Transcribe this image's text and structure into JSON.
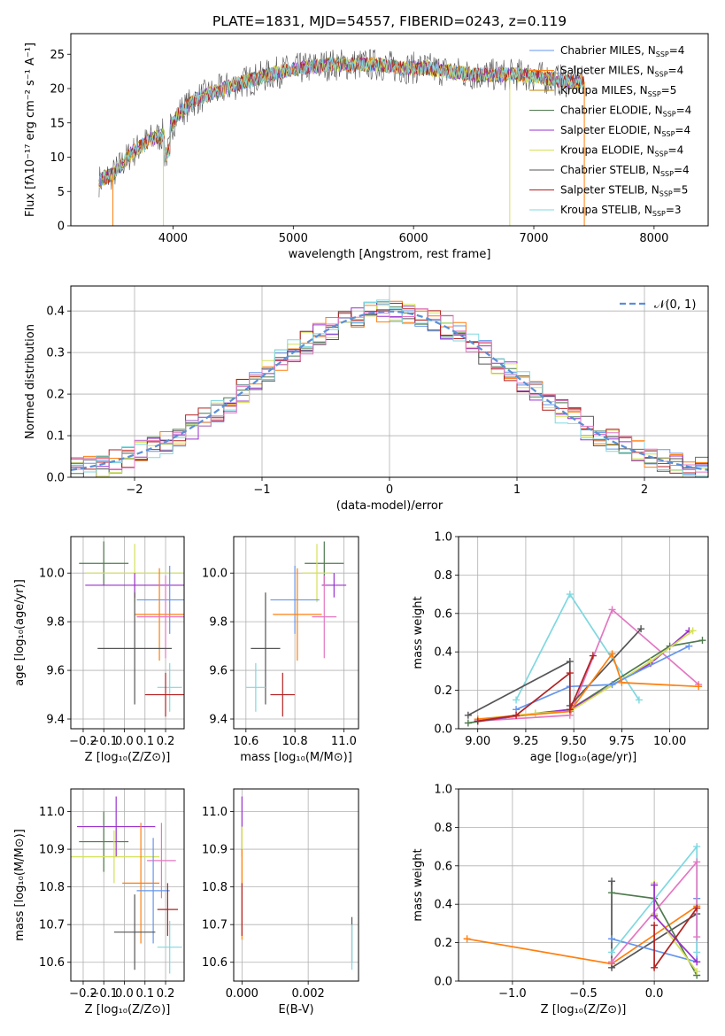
{
  "figure_title": "PLATE=1831, MJD=54557, FIBERID=0243, z=0.119",
  "colors": {
    "chabrier_miles": "#6495ed",
    "salpeter_miles": "#ff7f0e",
    "kroupa_miles": "#b8860b",
    "chabrier_elodie": "#4e7a4e",
    "salpeter_elodie": "#9932cc",
    "kroupa_elodie": "#d4e157",
    "chabrier_stelib": "#555555",
    "salpeter_stelib": "#b22222",
    "kroupa_stelib": "#7fd8e0",
    "pink": "#e377c2",
    "normal_curve": "#5a8fd6"
  },
  "chart_data": [
    {
      "id": "spectrum",
      "type": "line",
      "xlabel": "wavelength [Angstrom, rest frame]",
      "ylabel": "Flux [fλ10⁻¹⁷ erg cm⁻² s⁻¹ A⁻¹]",
      "xlim": [
        3150,
        8450
      ],
      "ylim": [
        0,
        28
      ],
      "xticks": [
        4000,
        5000,
        6000,
        7000,
        8000
      ],
      "yticks": [
        0,
        5,
        10,
        15,
        20,
        25
      ],
      "legend_position": "upper right",
      "spectrum_shape": {
        "x": [
          3380,
          3500,
          3650,
          3800,
          3950,
          4050,
          4200,
          4350,
          4500,
          4700,
          4900,
          5100,
          5300,
          5500,
          5700,
          5900,
          6100,
          6300,
          6500,
          6700,
          6900,
          7100,
          7300,
          7420
        ],
        "y": [
          6.5,
          7.5,
          10.5,
          12.5,
          13.5,
          16.5,
          18.5,
          19.5,
          20.5,
          21.5,
          22.5,
          23,
          23.5,
          23.5,
          23.5,
          23,
          23,
          22.5,
          22,
          22,
          22,
          21.5,
          21,
          21
        ]
      },
      "series": [
        {
          "name": "Chabrier MILES",
          "nssp": "4",
          "color_key": "chabrier_miles"
        },
        {
          "name": "Salpeter MILES",
          "nssp": "4",
          "color_key": "salpeter_miles"
        },
        {
          "name": "Kroupa MILES",
          "nssp": "5",
          "color_key": "kroupa_miles"
        },
        {
          "name": "Chabrier ELODIE",
          "nssp": "4",
          "color_key": "chabrier_elodie"
        },
        {
          "name": "Salpeter ELODIE",
          "nssp": "4",
          "color_key": "salpeter_elodie"
        },
        {
          "name": "Kroupa ELODIE",
          "nssp": "4",
          "color_key": "kroupa_elodie"
        },
        {
          "name": "Chabrier STELIB",
          "nssp": "4",
          "color_key": "chabrier_stelib"
        },
        {
          "name": "Salpeter STELIB",
          "nssp": "5",
          "color_key": "salpeter_stelib"
        },
        {
          "name": "Kroupa STELIB",
          "nssp": "3",
          "color_key": "kroupa_stelib"
        }
      ]
    },
    {
      "id": "residuals",
      "type": "histogram",
      "xlabel": "(data-model)/error",
      "ylabel": "Normed distribution",
      "xlim": [
        -2.5,
        2.5
      ],
      "ylim": [
        0,
        0.46
      ],
      "xticks": [
        -2,
        -1,
        0,
        1,
        2
      ],
      "yticks": [
        0.0,
        0.1,
        0.2,
        0.3,
        0.4
      ],
      "grid": true,
      "legend_label": "𝒩(0, 1)",
      "legend_position": "upper right",
      "bin_width": 0.1
    },
    {
      "id": "age_vs_Z",
      "type": "errorbar",
      "xlabel": "Z [log₁₀(Z/Z⊙)]",
      "ylabel": "age  [log₁₀(age/yr)]",
      "xlim": [
        -0.26,
        0.29
      ],
      "ylim": [
        9.36,
        10.15
      ],
      "xticks": [
        -0.2,
        -0.1,
        0.0,
        0.1,
        0.2
      ],
      "yticks": [
        9.4,
        9.6,
        9.8,
        10.0
      ],
      "grid": true,
      "points": [
        {
          "color_key": "chabrier_elodie",
          "x": -0.1,
          "xerr": 0.12,
          "y": 10.04,
          "yerr": 0.09
        },
        {
          "color_key": "kroupa_elodie",
          "x": 0.05,
          "xerr": 0.24,
          "y": 10.0,
          "yerr": 0.12
        },
        {
          "color_key": "salpeter_elodie",
          "x": 0.05,
          "xerr": 0.24,
          "y": 9.95,
          "yerr": 0.05
        },
        {
          "color_key": "chabrier_miles",
          "x": 0.22,
          "xerr": 0.16,
          "y": 9.89,
          "yerr": 0.14
        },
        {
          "color_key": "salpeter_miles",
          "x": 0.17,
          "xerr": 0.12,
          "y": 9.83,
          "yerr": 0.19
        },
        {
          "color_key": "pink",
          "x": 0.2,
          "xerr": 0.14,
          "y": 9.82,
          "yerr": 0.17
        },
        {
          "color_key": "chabrier_stelib",
          "x": 0.05,
          "xerr": 0.18,
          "y": 9.69,
          "yerr": 0.23
        },
        {
          "color_key": "kroupa_stelib",
          "x": 0.22,
          "xerr": 0.06,
          "y": 9.53,
          "yerr": 0.1
        },
        {
          "color_key": "salpeter_stelib",
          "x": 0.2,
          "xerr": 0.1,
          "y": 9.5,
          "yerr": 0.09
        }
      ]
    },
    {
      "id": "age_vs_mass",
      "type": "errorbar",
      "xlabel": "mass [log₁₀(M/M⊙)]",
      "ylabel": "",
      "xlim": [
        10.55,
        11.06
      ],
      "ylim": [
        9.36,
        10.15
      ],
      "xticks": [
        10.6,
        10.8,
        11.0
      ],
      "yticks": [
        9.4,
        9.6,
        9.8,
        10.0
      ],
      "grid": true,
      "points": [
        {
          "color_key": "chabrier_elodie",
          "x": 10.92,
          "xerr": 0.08,
          "y": 10.04,
          "yerr": 0.09
        },
        {
          "color_key": "kroupa_elodie",
          "x": 10.89,
          "xerr": 0.06,
          "y": 10.0,
          "yerr": 0.12
        },
        {
          "color_key": "salpeter_elodie",
          "x": 10.96,
          "xerr": 0.05,
          "y": 9.95,
          "yerr": 0.05
        },
        {
          "color_key": "chabrier_miles",
          "x": 10.8,
          "xerr": 0.1,
          "y": 9.89,
          "yerr": 0.14
        },
        {
          "color_key": "salpeter_miles",
          "x": 10.81,
          "xerr": 0.1,
          "y": 9.83,
          "yerr": 0.19
        },
        {
          "color_key": "pink",
          "x": 10.92,
          "xerr": 0.05,
          "y": 9.82,
          "yerr": 0.17
        },
        {
          "color_key": "chabrier_stelib",
          "x": 10.68,
          "xerr": 0.06,
          "y": 9.69,
          "yerr": 0.23
        },
        {
          "color_key": "kroupa_stelib",
          "x": 10.64,
          "xerr": 0.04,
          "y": 9.53,
          "yerr": 0.1
        },
        {
          "color_key": "salpeter_stelib",
          "x": 10.75,
          "xerr": 0.05,
          "y": 9.5,
          "yerr": 0.09
        }
      ]
    },
    {
      "id": "weight_vs_age",
      "type": "line",
      "xlabel": "age  [log₁₀(age/yr)]",
      "ylabel": "mass weight",
      "xlim": [
        8.9,
        10.2
      ],
      "ylim": [
        0.0,
        1.0
      ],
      "xticks": [
        9.0,
        9.25,
        9.5,
        9.75,
        10.0
      ],
      "yticks": [
        0.0,
        0.2,
        0.4,
        0.6,
        0.8,
        1.0
      ],
      "grid": true,
      "series": [
        {
          "color_key": "kroupa_stelib",
          "x": [
            9.2,
            9.48,
            9.84
          ],
          "y": [
            0.15,
            0.7,
            0.15
          ]
        },
        {
          "color_key": "pink",
          "x": [
            9.0,
            9.48,
            9.7,
            10.15
          ],
          "y": [
            0.04,
            0.07,
            0.62,
            0.23
          ]
        },
        {
          "color_key": "chabrier_stelib",
          "x": [
            8.95,
            9.48,
            9.48,
            9.85
          ],
          "y": [
            0.07,
            0.35,
            0.12,
            0.52
          ]
        },
        {
          "color_key": "chabrier_elodie",
          "x": [
            8.95,
            9.3,
            9.48,
            10.0,
            10.17
          ],
          "y": [
            0.03,
            0.08,
            0.1,
            0.43,
            0.46
          ]
        },
        {
          "color_key": "salpeter_elodie",
          "x": [
            9.0,
            9.48,
            9.9,
            10.1
          ],
          "y": [
            0.04,
            0.1,
            0.34,
            0.51
          ]
        },
        {
          "color_key": "kroupa_elodie",
          "x": [
            9.0,
            9.3,
            9.48,
            9.9,
            10.12
          ],
          "y": [
            0.05,
            0.08,
            0.09,
            0.35,
            0.51
          ]
        },
        {
          "color_key": "chabrier_miles",
          "x": [
            9.2,
            9.48,
            9.7,
            10.1
          ],
          "y": [
            0.1,
            0.22,
            0.23,
            0.43
          ]
        },
        {
          "color_key": "salpeter_miles",
          "x": [
            9.0,
            9.48,
            9.7,
            9.75,
            10.15
          ],
          "y": [
            0.05,
            0.09,
            0.39,
            0.24,
            0.22
          ]
        },
        {
          "color_key": "salpeter_stelib",
          "x": [
            9.0,
            9.2,
            9.48,
            9.48,
            9.6
          ],
          "y": [
            0.04,
            0.07,
            0.29,
            0.1,
            0.38
          ]
        }
      ]
    },
    {
      "id": "mass_vs_Z",
      "type": "errorbar",
      "xlabel": "Z [log₁₀(Z/Z⊙)]",
      "ylabel": "mass [log₁₀(M/M⊙)]",
      "xlim": [
        -0.26,
        0.29
      ],
      "ylim": [
        10.55,
        11.06
      ],
      "xticks": [
        -0.2,
        -0.1,
        0.0,
        0.1,
        0.2
      ],
      "yticks": [
        10.6,
        10.7,
        10.8,
        10.9,
        11.0
      ],
      "grid": true,
      "points": [
        {
          "color_key": "salpeter_elodie",
          "x": -0.04,
          "xerr": 0.19,
          "y": 10.96,
          "yerr": 0.08
        },
        {
          "color_key": "chabrier_elodie",
          "x": -0.1,
          "xerr": 0.12,
          "y": 10.92,
          "yerr": 0.08
        },
        {
          "color_key": "kroupa_elodie",
          "x": -0.05,
          "xerr": 0.22,
          "y": 10.88,
          "yerr": 0.07
        },
        {
          "color_key": "pink",
          "x": 0.18,
          "xerr": 0.07,
          "y": 10.87,
          "yerr": 0.1
        },
        {
          "color_key": "salpeter_miles",
          "x": 0.08,
          "xerr": 0.09,
          "y": 10.81,
          "yerr": 0.16
        },
        {
          "color_key": "chabrier_miles",
          "x": 0.14,
          "xerr": 0.08,
          "y": 10.79,
          "yerr": 0.14
        },
        {
          "color_key": "salpeter_stelib",
          "x": 0.21,
          "xerr": 0.05,
          "y": 10.74,
          "yerr": 0.07
        },
        {
          "color_key": "chabrier_stelib",
          "x": 0.05,
          "xerr": 0.1,
          "y": 10.68,
          "yerr": 0.1
        },
        {
          "color_key": "kroupa_stelib",
          "x": 0.22,
          "xerr": 0.06,
          "y": 10.64,
          "yerr": 0.07
        }
      ]
    },
    {
      "id": "mass_vs_ebv",
      "type": "errorbar",
      "xlabel": "E(B-V)",
      "ylabel": "",
      "xlim": [
        -0.00025,
        0.00352
      ],
      "ylim": [
        10.55,
        11.06
      ],
      "xticks": [
        0.0,
        0.002
      ],
      "yticks": [
        10.6,
        10.7,
        10.8,
        10.9,
        11.0
      ],
      "grid": true,
      "points": [
        {
          "color_key": "salpeter_elodie",
          "x": 0.0,
          "xerr": 0.0,
          "y": 10.96,
          "yerr": 0.08
        },
        {
          "color_key": "kroupa_elodie",
          "x": 0.0,
          "xerr": 0.0,
          "y": 10.88,
          "yerr": 0.08
        },
        {
          "color_key": "salpeter_miles",
          "x": 0.0,
          "xerr": 0.0,
          "y": 10.78,
          "yerr": 0.12
        },
        {
          "color_key": "salpeter_stelib",
          "x": 0.0,
          "xerr": 0.0,
          "y": 10.74,
          "yerr": 0.07
        },
        {
          "color_key": "chabrier_stelib",
          "x": 0.00332,
          "xerr": 0.0,
          "y": 10.66,
          "yerr": 0.06
        },
        {
          "color_key": "kroupa_stelib",
          "x": 0.00332,
          "xerr": 0.0,
          "y": 10.64,
          "yerr": 0.06
        }
      ]
    },
    {
      "id": "weight_vs_Z",
      "type": "line",
      "xlabel": "Z [log₁₀(Z/Z⊙)]",
      "ylabel": "mass weight",
      "xlim": [
        -1.38,
        0.38
      ],
      "ylim": [
        0.0,
        1.0
      ],
      "xticks": [
        -1.0,
        -0.5,
        0.0
      ],
      "yticks": [
        0.0,
        0.2,
        0.4,
        0.6,
        0.8,
        1.0
      ],
      "grid": true,
      "series": [
        {
          "color_key": "salpeter_miles",
          "x": [
            -1.32,
            -0.3,
            0.3
          ],
          "y": [
            0.22,
            0.09,
            0.39
          ]
        },
        {
          "color_key": "chabrier_stelib",
          "x": [
            -0.3,
            -0.3,
            0.3
          ],
          "y": [
            0.52,
            0.07,
            0.35
          ]
        },
        {
          "color_key": "chabrier_elodie",
          "x": [
            -0.3,
            0.0,
            0.3
          ],
          "y": [
            0.46,
            0.43,
            0.03
          ]
        },
        {
          "color_key": "chabrier_miles",
          "x": [
            -0.3,
            0.3,
            0.3
          ],
          "y": [
            0.22,
            0.1,
            0.43
          ]
        },
        {
          "color_key": "kroupa_stelib",
          "x": [
            -0.3,
            0.3,
            0.3
          ],
          "y": [
            0.15,
            0.7,
            0.15
          ]
        },
        {
          "color_key": "pink",
          "x": [
            -0.3,
            0.3,
            0.3
          ],
          "y": [
            0.1,
            0.62,
            0.23
          ]
        },
        {
          "color_key": "kroupa_elodie",
          "x": [
            0.0,
            0.0,
            0.3
          ],
          "y": [
            0.51,
            0.35,
            0.05
          ]
        },
        {
          "color_key": "salpeter_elodie",
          "x": [
            0.0,
            0.0,
            0.3
          ],
          "y": [
            0.5,
            0.34,
            0.1
          ]
        },
        {
          "color_key": "salpeter_stelib",
          "x": [
            0.0,
            0.0,
            0.3
          ],
          "y": [
            0.29,
            0.07,
            0.38
          ]
        }
      ]
    }
  ]
}
